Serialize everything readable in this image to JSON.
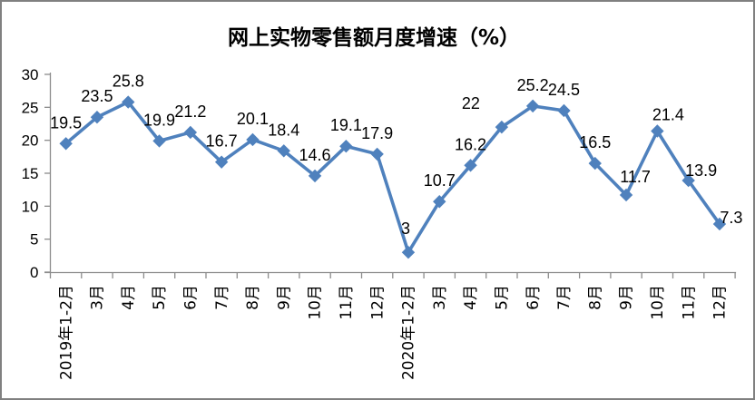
{
  "chart_data": {
    "type": "line",
    "title": "网上实物零售额月度增速（%）",
    "categories": [
      "2019年1-2月",
      "3月",
      "4月",
      "5月",
      "6月",
      "7月",
      "8月",
      "9月",
      "10月",
      "11月",
      "12月",
      "2020年1-2月",
      "3月",
      "4月",
      "5月",
      "6月",
      "7月",
      "8月",
      "9月",
      "10月",
      "11月",
      "12月"
    ],
    "values": [
      19.5,
      23.5,
      25.8,
      19.9,
      21.2,
      16.7,
      20.1,
      18.4,
      14.6,
      19.1,
      17.9,
      3,
      10.7,
      16.2,
      22,
      25.2,
      24.5,
      16.5,
      11.7,
      21.4,
      13.9,
      7.3
    ],
    "data_labels": [
      "19.5",
      "23.5",
      "25.8",
      "19.9",
      "21.2",
      "16.7",
      "20.1",
      "18.4",
      "14.6",
      "19.1",
      "17.9",
      "3",
      "10.7",
      "16.2",
      "22",
      "25.2",
      "24.5",
      "16.5",
      "11.7",
      "21.4",
      "13.9",
      "7.3"
    ],
    "xlabel": "",
    "ylabel": "",
    "ylim": [
      0,
      30
    ],
    "yticks": [
      0,
      5,
      10,
      15,
      20,
      25,
      30
    ],
    "grid": false,
    "legend_position": "none",
    "series_color": "#4F81BD",
    "marker": "diamond",
    "axis_color": "#8C8C8C",
    "text_color": "#000000",
    "background_color": "#FFFFFF",
    "border_color": "#808080"
  }
}
